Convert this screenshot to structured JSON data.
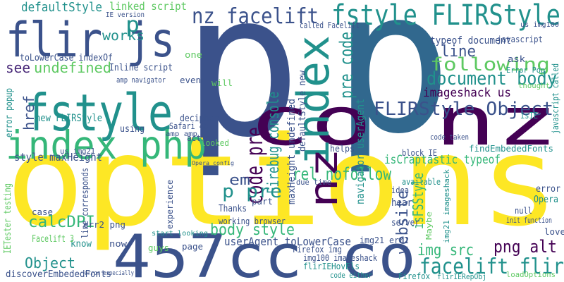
{
  "words": [
    "p",
    "p",
    "options",
    "457cc co",
    "co nz",
    "flir js",
    "fstyle",
    "index php",
    "index",
    "nz",
    "fstyle FLIRStyle",
    "nz facelift",
    "defaultStyle",
    "linked script",
    "IE version",
    "works",
    "p",
    "see",
    "undefined",
    "toLowerCase indexOf",
    "Inline script",
    "new FLIRStyle",
    "href",
    "style maxHeight",
    "calcDPI",
    "Object",
    "following",
    "document body",
    "line",
    "typeof document",
    "imageshack us",
    "FLIRStyle Object",
    "pre code",
    "navigator userAgent",
    "code pre",
    "Firebug console",
    "maxHeight undefined",
    "defaultStyle new",
    "rel nofollow",
    "p pre",
    "em",
    "body style",
    "userAgent toLowerCase",
    "website",
    "isFSStyle",
    "img src",
    "png alt",
    "facelift flir",
    "isCraptastic typeof",
    "findEmbededFonts",
    "javascript called",
    "thought",
    "ask",
    "Error Pop",
    "javascript",
    "us img100",
    "called Facelift",
    "code taken",
    "IETester testing",
    "error popup",
    "us img21",
    "using",
    "decipher",
    "Safari 4b",
    "amp amp",
    "even",
    "one",
    "amp navigator",
    "action",
    "looked",
    "helps",
    "block IE",
    "available",
    "idea",
    "due time",
    "Thanks",
    "working browser",
    "hear",
    "server",
    "Opera",
    "error",
    "null",
    "init function",
    "love",
    "case",
    "know",
    "now",
    "guys",
    "page",
    "experience",
    "line corresponds",
    "Firefox img",
    "img100 imageshack",
    "img21 err2",
    "flirIEHovEls",
    "code either",
    "Firefox",
    "flirIERepObj",
    "loadOptions",
    "discoverEmbededFonts",
    "error especially",
    "Facelift 3",
    "isIE",
    "will",
    "part",
    "err2 png",
    "Opera config",
    "Maybe",
    "img21 imageshack",
    "start looking"
  ]
}
